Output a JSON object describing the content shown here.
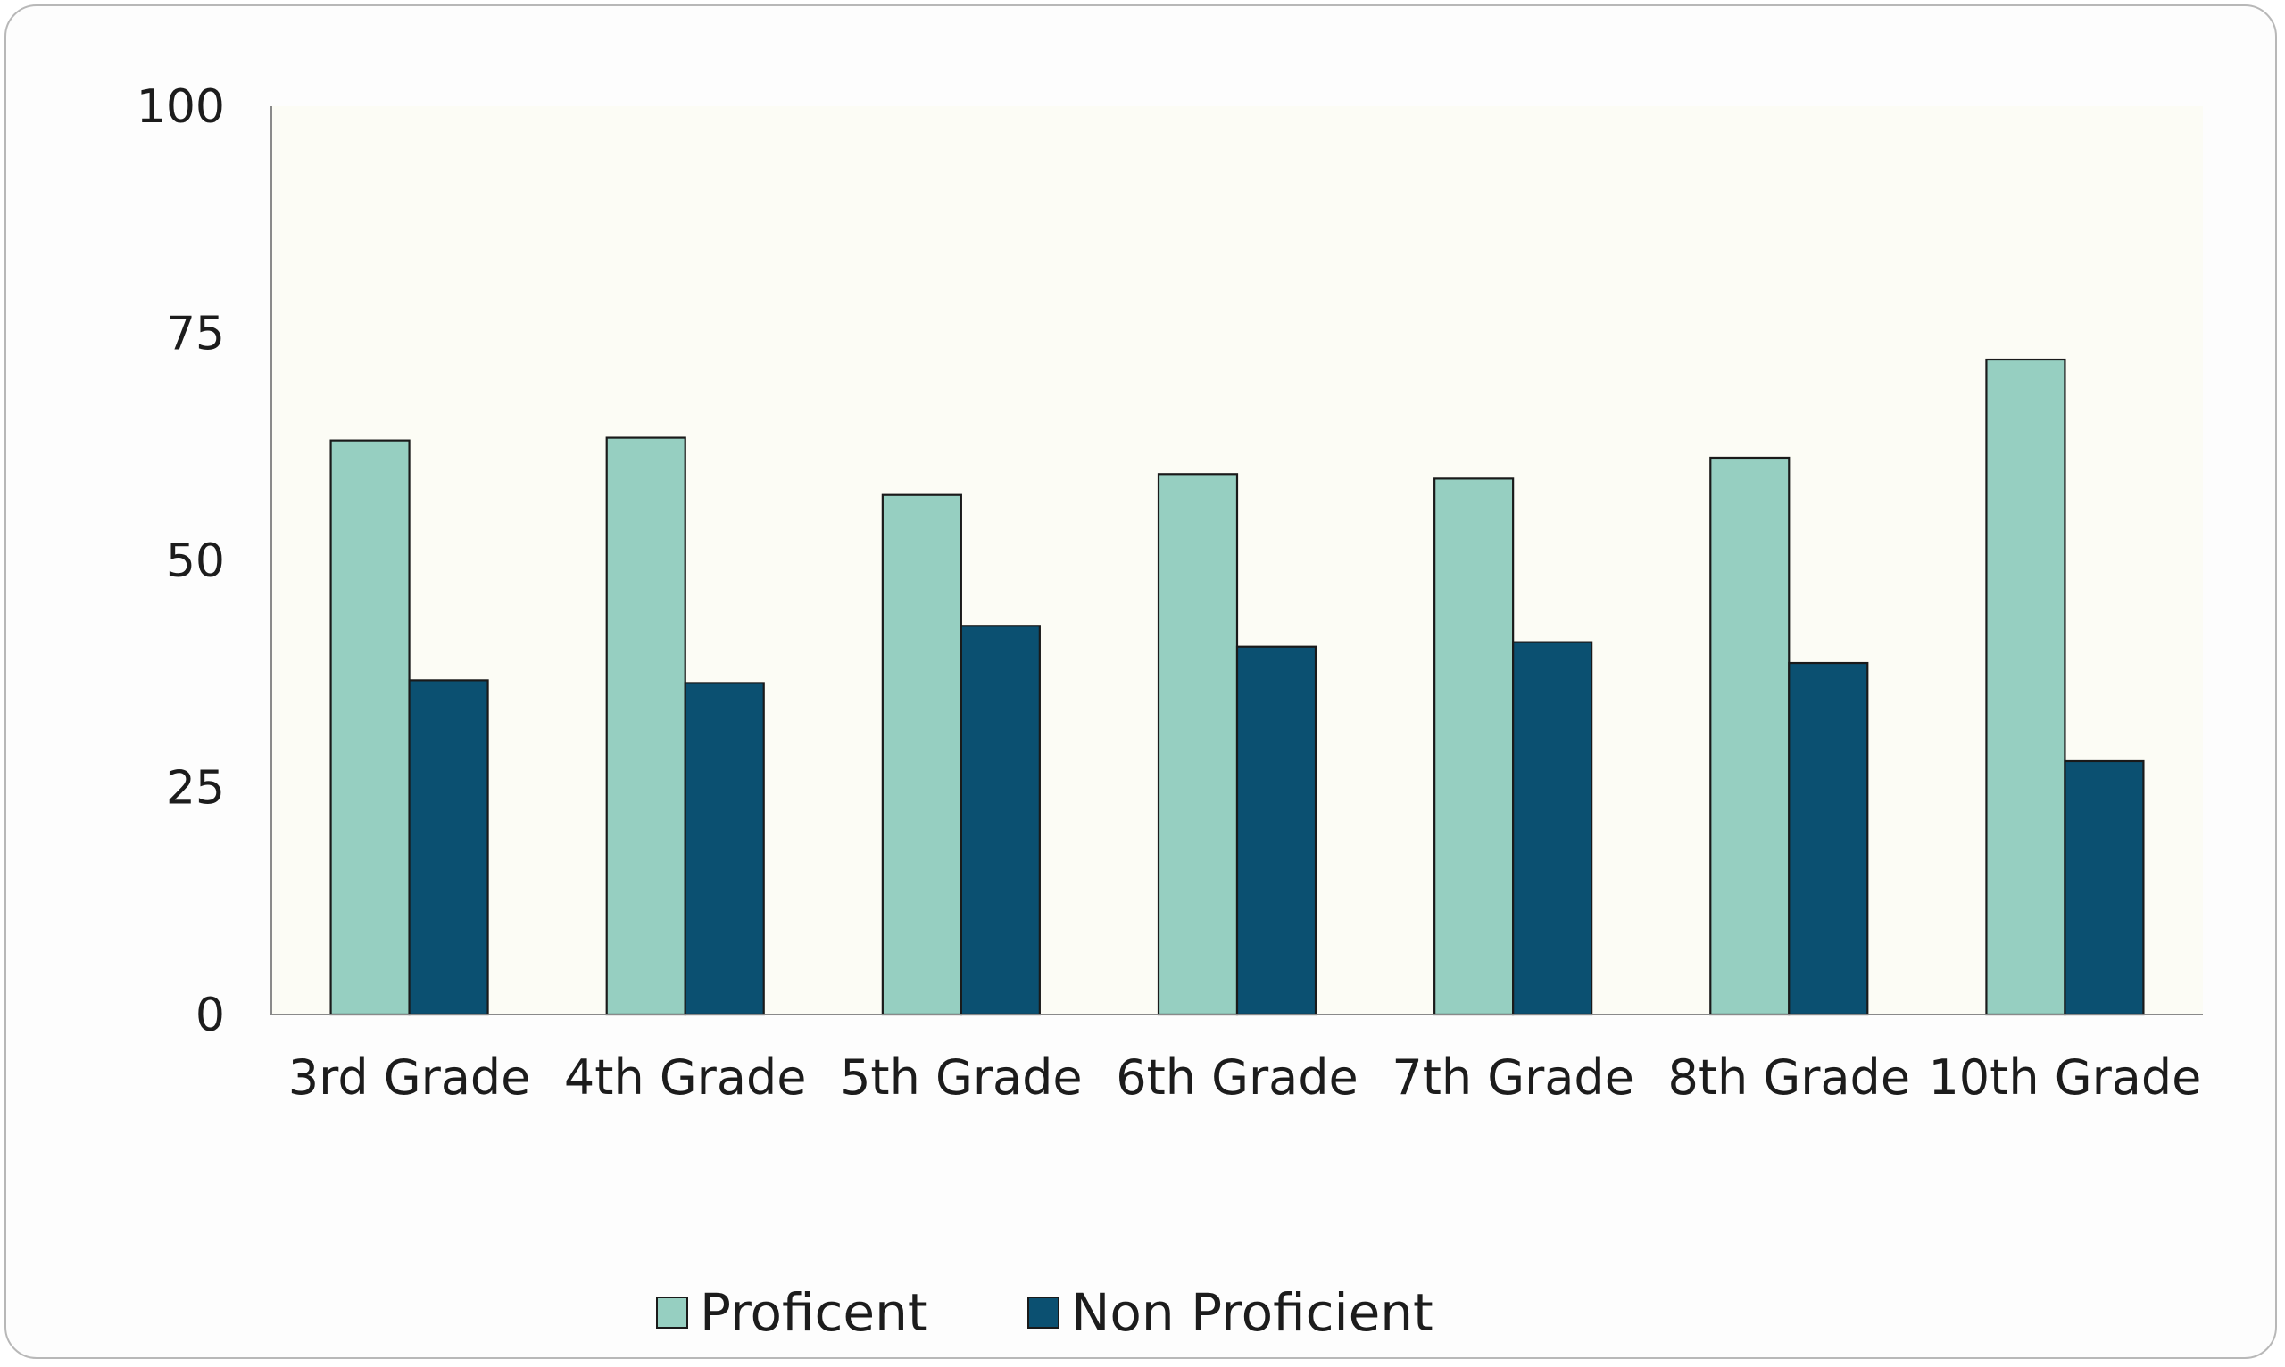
{
  "chart_data": {
    "type": "bar",
    "title": "",
    "xlabel": "",
    "ylabel": "",
    "categories": [
      "3rd Grade",
      "4th Grade",
      "5th Grade",
      "6th Grade",
      "7th Grade",
      "8th Grade",
      "10th Grade"
    ],
    "series": [
      {
        "name": "Proficent",
        "color": "#96cfc1",
        "values": [
          63.2,
          63.5,
          57.2,
          59.5,
          59.0,
          61.3,
          72.1
        ]
      },
      {
        "name": "Non Proficient",
        "color": "#0b5071",
        "values": [
          36.8,
          36.5,
          42.8,
          40.5,
          41.0,
          38.7,
          27.9
        ]
      }
    ],
    "ylim": [
      0,
      100
    ],
    "yticks": [
      0,
      25,
      50,
      75,
      100
    ],
    "grid": false,
    "plot_background": "#fcfcf5",
    "legend": "bottom"
  }
}
